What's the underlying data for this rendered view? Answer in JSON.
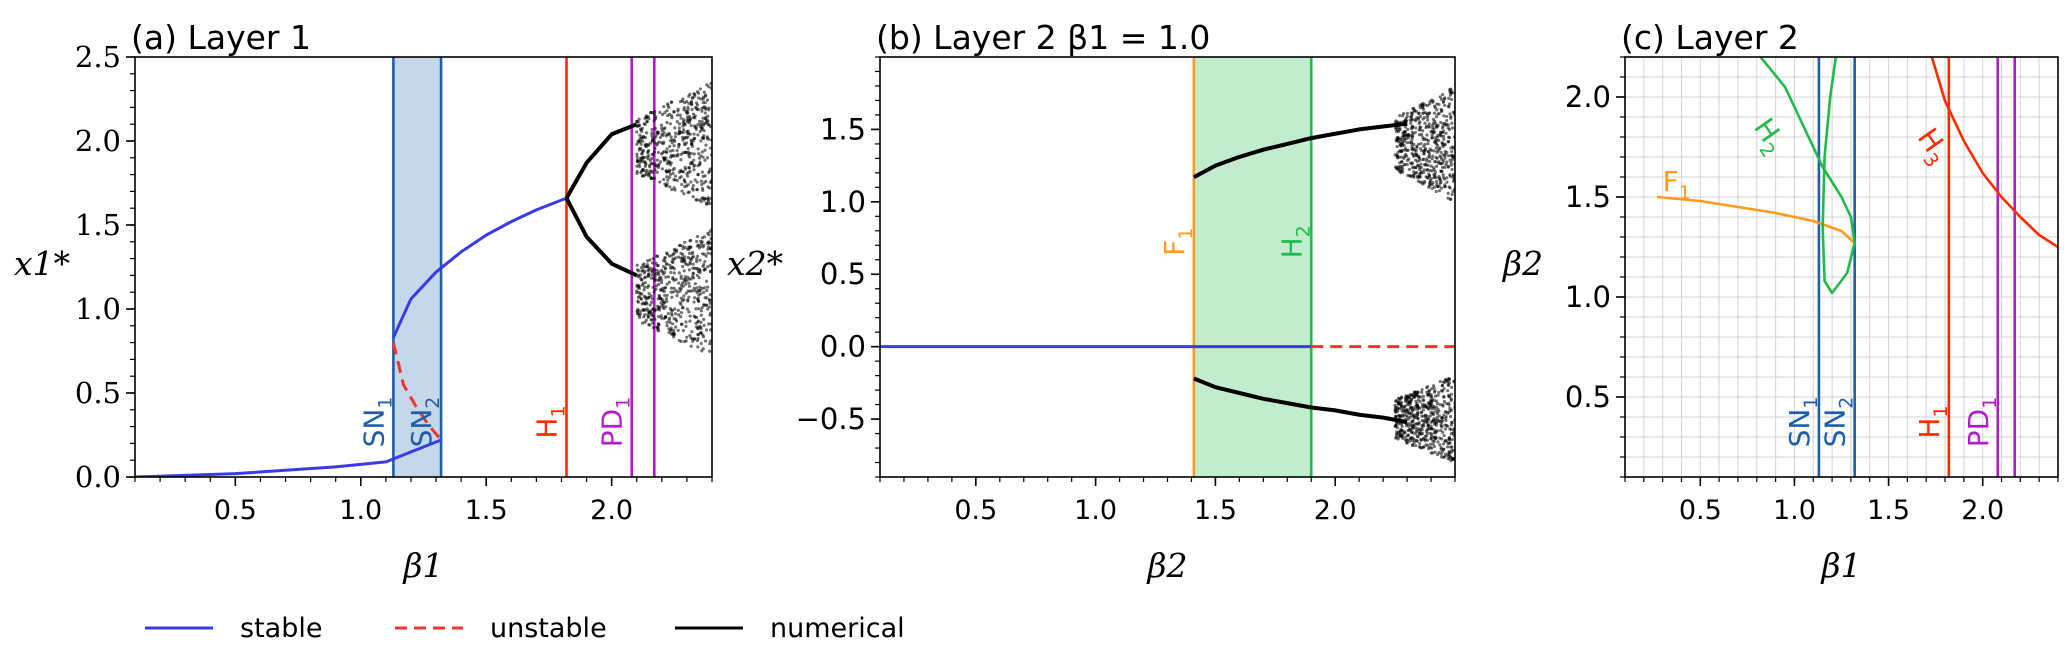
{
  "chart_data": [
    {
      "type": "line",
      "title": "(a) Layer 1",
      "xlabel": "β1",
      "ylabel": "x1*",
      "xlim": [
        0.1,
        2.4
      ],
      "ylim": [
        0.0,
        2.5
      ],
      "xticks": [
        0.5,
        1.0,
        1.5,
        2.0
      ],
      "xtick_labels": [
        "0.5",
        "1.0",
        "1.5",
        "2.0"
      ],
      "yticks": [
        0.0,
        0.5,
        1.0,
        1.5,
        2.0,
        2.5
      ],
      "ytick_labels": [
        "0.0",
        "0.5",
        "1.0",
        "1.5",
        "2.0",
        "2.5"
      ],
      "shaded_region": {
        "x": [
          1.13,
          1.32
        ],
        "color": "#c4d8ea"
      },
      "vlines": [
        {
          "x": 1.13,
          "label": "SN",
          "sub": "1",
          "color": "#1f5fa8"
        },
        {
          "x": 1.32,
          "label": "SN",
          "sub": "2",
          "color": "#1f5fa8"
        },
        {
          "x": 1.82,
          "label": "H",
          "sub": "1",
          "color": "#ff2a00"
        },
        {
          "x": 2.08,
          "label": "PD",
          "sub": "1",
          "color": "#b01cc8"
        },
        {
          "x": 2.17,
          "label": "",
          "sub": "",
          "color": "#b01cc8"
        }
      ],
      "series": [
        {
          "style": "stable",
          "x": [
            0.1,
            0.3,
            0.5,
            0.7,
            0.9,
            1.1,
            1.32
          ],
          "y": [
            0.0,
            0.01,
            0.02,
            0.04,
            0.06,
            0.09,
            0.22
          ]
        },
        {
          "style": "stable",
          "x": [
            1.13,
            1.2,
            1.3,
            1.4,
            1.5,
            1.6,
            1.7,
            1.82
          ],
          "y": [
            0.83,
            1.06,
            1.22,
            1.34,
            1.44,
            1.52,
            1.59,
            1.66
          ]
        },
        {
          "style": "unstable",
          "x": [
            1.13,
            1.17,
            1.22,
            1.27,
            1.32
          ],
          "y": [
            0.8,
            0.55,
            0.42,
            0.31,
            0.22
          ]
        },
        {
          "style": "numerical",
          "x": [
            1.82,
            1.9,
            2.0,
            2.1
          ],
          "y": [
            1.66,
            1.87,
            2.04,
            2.1
          ]
        },
        {
          "style": "numerical",
          "x": [
            1.82,
            1.9,
            2.0,
            2.1
          ],
          "y": [
            1.66,
            1.43,
            1.27,
            1.2
          ]
        }
      ],
      "chaos": {
        "x_range": [
          2.1,
          2.4
        ],
        "upper": [
          1.6,
          2.35
        ],
        "lower": [
          0.72,
          1.48
        ]
      }
    },
    {
      "type": "line",
      "title": "(b) Layer 2 β1 = 1.0",
      "xlabel": "β2",
      "ylabel": "x2*",
      "xlim": [
        0.1,
        2.5
      ],
      "ylim": [
        -0.9,
        2.0
      ],
      "xticks": [
        0.5,
        1.0,
        1.5,
        2.0
      ],
      "xtick_labels": [
        "0.5",
        "1.0",
        "1.5",
        "2.0"
      ],
      "yticks": [
        -0.5,
        0.0,
        0.5,
        1.0,
        1.5
      ],
      "ytick_labels": [
        "−0.5",
        "0.0",
        "0.5",
        "1.0",
        "1.5"
      ],
      "shaded_region": {
        "x": [
          1.41,
          1.9
        ],
        "color": "#c1eccd"
      },
      "vlines": [
        {
          "x": 1.41,
          "label": "F",
          "sub": "1",
          "color": "#ff9a1a"
        },
        {
          "x": 1.9,
          "label": "H",
          "sub": "2",
          "color": "#1fba4a"
        }
      ],
      "series": [
        {
          "style": "stable",
          "x": [
            0.1,
            1.9
          ],
          "y": [
            0.0,
            0.0
          ]
        },
        {
          "style": "unstable",
          "x": [
            1.9,
            2.5
          ],
          "y": [
            0.0,
            0.0
          ]
        },
        {
          "style": "numerical",
          "x": [
            1.41,
            1.5,
            1.6,
            1.7,
            1.8,
            1.9,
            2.0,
            2.1,
            2.2,
            2.3
          ],
          "y": [
            1.17,
            1.25,
            1.31,
            1.36,
            1.4,
            1.44,
            1.47,
            1.5,
            1.52,
            1.54
          ]
        },
        {
          "style": "numerical",
          "x": [
            1.41,
            1.5,
            1.6,
            1.7,
            1.8,
            1.9,
            2.0,
            2.1,
            2.2,
            2.3
          ],
          "y": [
            -0.22,
            -0.28,
            -0.32,
            -0.36,
            -0.39,
            -0.42,
            -0.44,
            -0.47,
            -0.49,
            -0.52
          ]
        }
      ],
      "chaos": {
        "x_range": [
          2.25,
          2.5
        ],
        "upper": [
          1.0,
          1.8
        ],
        "lower": [
          -0.8,
          -0.2
        ]
      }
    },
    {
      "type": "line",
      "title": "(c) Layer 2",
      "xlabel": "β1",
      "ylabel": "β2",
      "xlim": [
        0.1,
        2.4
      ],
      "ylim": [
        0.1,
        2.2
      ],
      "grid": true,
      "xticks": [
        0.5,
        1.0,
        1.5,
        2.0
      ],
      "xtick_labels": [
        "0.5",
        "1.0",
        "1.5",
        "2.0"
      ],
      "yticks": [
        0.5,
        1.0,
        1.5,
        2.0
      ],
      "ytick_labels": [
        "0.5",
        "1.0",
        "1.5",
        "2.0"
      ],
      "vlines": [
        {
          "x": 1.13,
          "label": "SN",
          "sub": "1",
          "color": "#1f5fa8"
        },
        {
          "x": 1.32,
          "label": "SN",
          "sub": "2",
          "color": "#1f5fa8"
        },
        {
          "x": 1.82,
          "label": "H",
          "sub": "1",
          "color": "#ff2a00"
        },
        {
          "x": 2.08,
          "label": "PD",
          "sub": "1",
          "color": "#b01cc8"
        },
        {
          "x": 2.17,
          "label": "",
          "sub": "",
          "color": "#b01cc8"
        }
      ],
      "curves": [
        {
          "label": "F",
          "sub": "1",
          "color": "#ff9a1a",
          "x": [
            0.27,
            0.5,
            0.7,
            0.9,
            1.1,
            1.25,
            1.32
          ],
          "y": [
            1.5,
            1.48,
            1.45,
            1.42,
            1.38,
            1.33,
            1.27
          ]
        },
        {
          "label": "H",
          "sub": "2",
          "color": "#1fba4a",
          "x": [
            0.82,
            0.95,
            1.05,
            1.15,
            1.25,
            1.3,
            1.32,
            1.28,
            1.2,
            1.16,
            1.15,
            1.16,
            1.19,
            1.22
          ],
          "y": [
            2.2,
            2.05,
            1.85,
            1.65,
            1.5,
            1.4,
            1.27,
            1.12,
            1.02,
            1.08,
            1.35,
            1.7,
            2.0,
            2.2
          ]
        },
        {
          "label": "H",
          "sub": "3",
          "color": "#ff2a00",
          "x": [
            1.73,
            1.8,
            1.9,
            2.0,
            2.1,
            2.2,
            2.3,
            2.4
          ],
          "y": [
            2.2,
            1.98,
            1.78,
            1.62,
            1.5,
            1.4,
            1.31,
            1.25
          ]
        }
      ]
    }
  ],
  "legend": [
    {
      "label": "stable",
      "color": "#3a3ae8",
      "dash": ""
    },
    {
      "label": "unstable",
      "color": "#f0342c",
      "dash": "dashed"
    },
    {
      "label": "numerical",
      "color": "#000000",
      "dash": ""
    }
  ]
}
